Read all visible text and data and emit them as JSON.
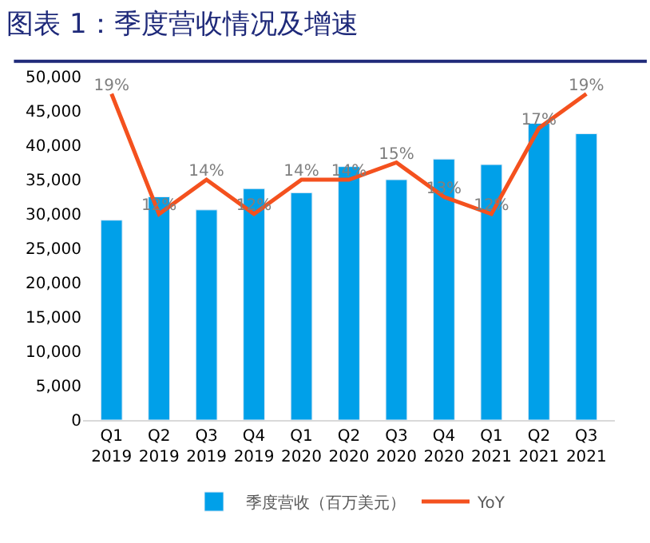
{
  "chart_data": {
    "type": "bar",
    "title": "图表 1：季度营收情况及增速",
    "categories": [
      "Q1\n2019",
      "Q2\n2019",
      "Q3\n2019",
      "Q4\n2019",
      "Q1\n2020",
      "Q2\n2020",
      "Q3\n2020",
      "Q4\n2020",
      "Q1\n2021",
      "Q2\n2021",
      "Q3\n2021"
    ],
    "series": [
      {
        "name": "季度营收（百万美元）",
        "color": "#00a0e9",
        "values": [
          29100,
          32500,
          30600,
          33700,
          33100,
          36900,
          35000,
          38000,
          37200,
          43200,
          41700
        ]
      },
      {
        "name": "YoY",
        "type": "line",
        "axis": "y2",
        "color": "#f4511e",
        "values": [
          19,
          12,
          14,
          12,
          14,
          14,
          15,
          13,
          12,
          17,
          19
        ],
        "value_labels": [
          "19%",
          "12%",
          "14%",
          "12%",
          "14%",
          "14%",
          "15%",
          "13%",
          "12%",
          "17%",
          "19%"
        ]
      }
    ],
    "ylim": [
      0,
      50000
    ],
    "yticks": [
      {
        "value": 0,
        "label": "0"
      },
      {
        "value": 5000,
        "label": "5,000"
      },
      {
        "value": 10000,
        "label": "10,000"
      },
      {
        "value": 15000,
        "label": "15,000"
      },
      {
        "value": 20000,
        "label": "20,000"
      },
      {
        "value": 25000,
        "label": "25,000"
      },
      {
        "value": 30000,
        "label": "30,000"
      },
      {
        "value": 35000,
        "label": "35,000"
      },
      {
        "value": 40000,
        "label": "40,000"
      },
      {
        "value": 45000,
        "label": "45,000"
      },
      {
        "value": 50000,
        "label": "50,000"
      }
    ],
    "grid": false,
    "legend": "bottom",
    "marker": "none",
    "line_style": "solid"
  }
}
